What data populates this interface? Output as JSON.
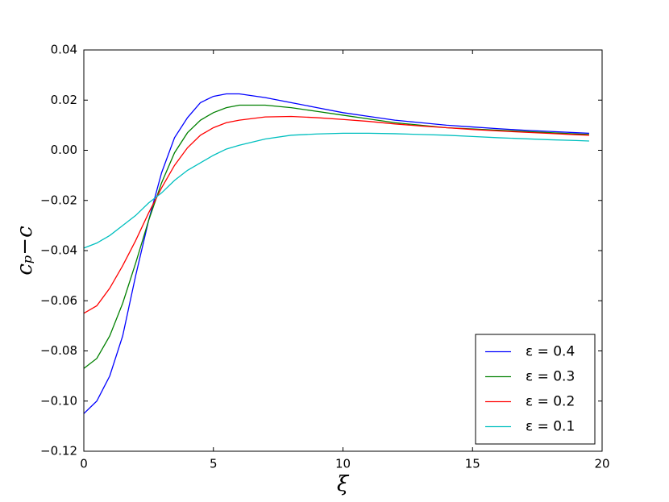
{
  "chart_data": {
    "type": "line",
    "xlabel": "ξ",
    "ylabel": "cₚ−c",
    "x": [
      0,
      0.5,
      1,
      1.5,
      2,
      2.5,
      3,
      3.5,
      4,
      4.5,
      5,
      5.5,
      6,
      7,
      8,
      9,
      10,
      11,
      12,
      13,
      14,
      15,
      16,
      17,
      18,
      19,
      19.5
    ],
    "series": [
      {
        "name": "ε = 0.4",
        "color": "#0000ff",
        "values": [
          -0.105,
          -0.1,
          -0.09,
          -0.074,
          -0.05,
          -0.028,
          -0.009,
          0.005,
          0.013,
          0.019,
          0.0215,
          0.0225,
          0.0225,
          0.021,
          0.019,
          0.017,
          0.015,
          0.0135,
          0.012,
          0.011,
          0.01,
          0.0093,
          0.0086,
          0.008,
          0.0075,
          0.007,
          0.0068
        ]
      },
      {
        "name": "ε = 0.3",
        "color": "#008000",
        "values": [
          -0.087,
          -0.083,
          -0.074,
          -0.061,
          -0.045,
          -0.028,
          -0.013,
          -0.001,
          0.007,
          0.012,
          0.015,
          0.017,
          0.018,
          0.018,
          0.017,
          0.0155,
          0.014,
          0.0125,
          0.011,
          0.01,
          0.009,
          0.0085,
          0.008,
          0.0075,
          0.007,
          0.0065,
          0.0063
        ]
      },
      {
        "name": "ε = 0.2",
        "color": "#ff0000",
        "values": [
          -0.065,
          -0.062,
          -0.055,
          -0.046,
          -0.036,
          -0.025,
          -0.015,
          -0.006,
          0.001,
          0.006,
          0.009,
          0.011,
          0.012,
          0.0133,
          0.0135,
          0.013,
          0.0123,
          0.0115,
          0.0105,
          0.0097,
          0.009,
          0.0083,
          0.0077,
          0.0072,
          0.0067,
          0.0062,
          0.006
        ]
      },
      {
        "name": "ε = 0.1",
        "color": "#00bfbf",
        "values": [
          -0.039,
          -0.037,
          -0.034,
          -0.03,
          -0.026,
          -0.021,
          -0.017,
          -0.012,
          -0.008,
          -0.005,
          -0.002,
          0.0005,
          0.002,
          0.0045,
          0.006,
          0.0065,
          0.0068,
          0.0068,
          0.0066,
          0.0063,
          0.006,
          0.0055,
          0.005,
          0.0046,
          0.0042,
          0.0039,
          0.0037
        ]
      }
    ],
    "xlim": [
      0,
      20
    ],
    "xticks": [
      0,
      5,
      10,
      15,
      20
    ],
    "ylim": [
      -0.12,
      0.04
    ],
    "yticks": [
      {
        "value": -0.12,
        "label": "−0.12"
      },
      {
        "value": -0.1,
        "label": "−0.10"
      },
      {
        "value": -0.08,
        "label": "−0.08"
      },
      {
        "value": -0.06,
        "label": "−0.06"
      },
      {
        "value": -0.04,
        "label": "−0.04"
      },
      {
        "value": -0.02,
        "label": "−0.02"
      },
      {
        "value": 0,
        "label": "0.00"
      },
      0.02,
      0.04
    ],
    "grid": false,
    "legend": "lower right"
  }
}
